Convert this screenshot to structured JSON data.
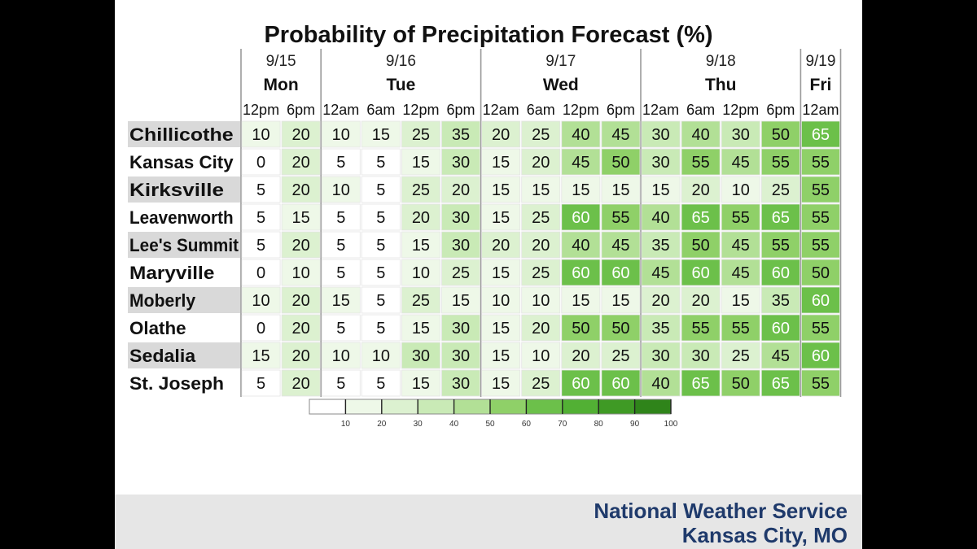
{
  "chart_data": {
    "type": "table",
    "title": "Probability of Precipitation Forecast (%)",
    "days": [
      {
        "date": "9/15",
        "day": "Mon",
        "times": [
          "12pm",
          "6pm"
        ]
      },
      {
        "date": "9/16",
        "day": "Tue",
        "times": [
          "12am",
          "6am",
          "12pm",
          "6pm"
        ]
      },
      {
        "date": "9/17",
        "day": "Wed",
        "times": [
          "12am",
          "6am",
          "12pm",
          "6pm"
        ]
      },
      {
        "date": "9/18",
        "day": "Thu",
        "times": [
          "12am",
          "6am",
          "12pm",
          "6pm"
        ]
      },
      {
        "date": "9/19",
        "day": "Fri",
        "times": [
          "12am"
        ]
      }
    ],
    "rows": [
      {
        "name": "Chillicothe",
        "values": [
          10,
          20,
          10,
          15,
          25,
          35,
          20,
          25,
          40,
          45,
          30,
          40,
          30,
          50,
          65
        ]
      },
      {
        "name": "Kansas City",
        "values": [
          0,
          20,
          5,
          5,
          15,
          30,
          15,
          20,
          45,
          50,
          30,
          55,
          45,
          55,
          55
        ]
      },
      {
        "name": "Kirksville",
        "values": [
          5,
          20,
          10,
          5,
          25,
          20,
          15,
          15,
          15,
          15,
          15,
          20,
          10,
          25,
          55
        ]
      },
      {
        "name": "Leavenworth",
        "values": [
          5,
          15,
          5,
          5,
          20,
          30,
          15,
          25,
          60,
          55,
          40,
          65,
          55,
          65,
          55
        ]
      },
      {
        "name": "Lee's Summit",
        "values": [
          5,
          20,
          5,
          5,
          15,
          30,
          20,
          20,
          40,
          45,
          35,
          50,
          45,
          55,
          55
        ]
      },
      {
        "name": "Maryville",
        "values": [
          0,
          10,
          5,
          5,
          10,
          25,
          15,
          25,
          60,
          60,
          45,
          60,
          45,
          60,
          50
        ]
      },
      {
        "name": "Moberly",
        "values": [
          10,
          20,
          15,
          5,
          25,
          15,
          10,
          10,
          15,
          15,
          20,
          20,
          15,
          35,
          60
        ]
      },
      {
        "name": "Olathe",
        "values": [
          0,
          20,
          5,
          5,
          15,
          30,
          15,
          20,
          50,
          50,
          35,
          55,
          55,
          60,
          55
        ]
      },
      {
        "name": "Sedalia",
        "values": [
          15,
          20,
          10,
          10,
          30,
          30,
          15,
          10,
          20,
          25,
          30,
          30,
          25,
          45,
          60
        ]
      },
      {
        "name": "St. Joseph",
        "values": [
          5,
          20,
          5,
          5,
          15,
          30,
          15,
          25,
          60,
          60,
          40,
          65,
          50,
          65,
          55
        ]
      }
    ],
    "legend": {
      "ticks": [
        10,
        20,
        30,
        40,
        50,
        60,
        70,
        80,
        90,
        100
      ],
      "colors": [
        "#ffffff",
        "#eef8e8",
        "#dcf1d0",
        "#c9eab6",
        "#b2e096",
        "#8fd068",
        "#6cc04a",
        "#52b034",
        "#3f9a25",
        "#2f841a",
        "#237012"
      ]
    }
  },
  "footer": {
    "line1": "National Weather Service",
    "line2": "Kansas City, MO"
  }
}
